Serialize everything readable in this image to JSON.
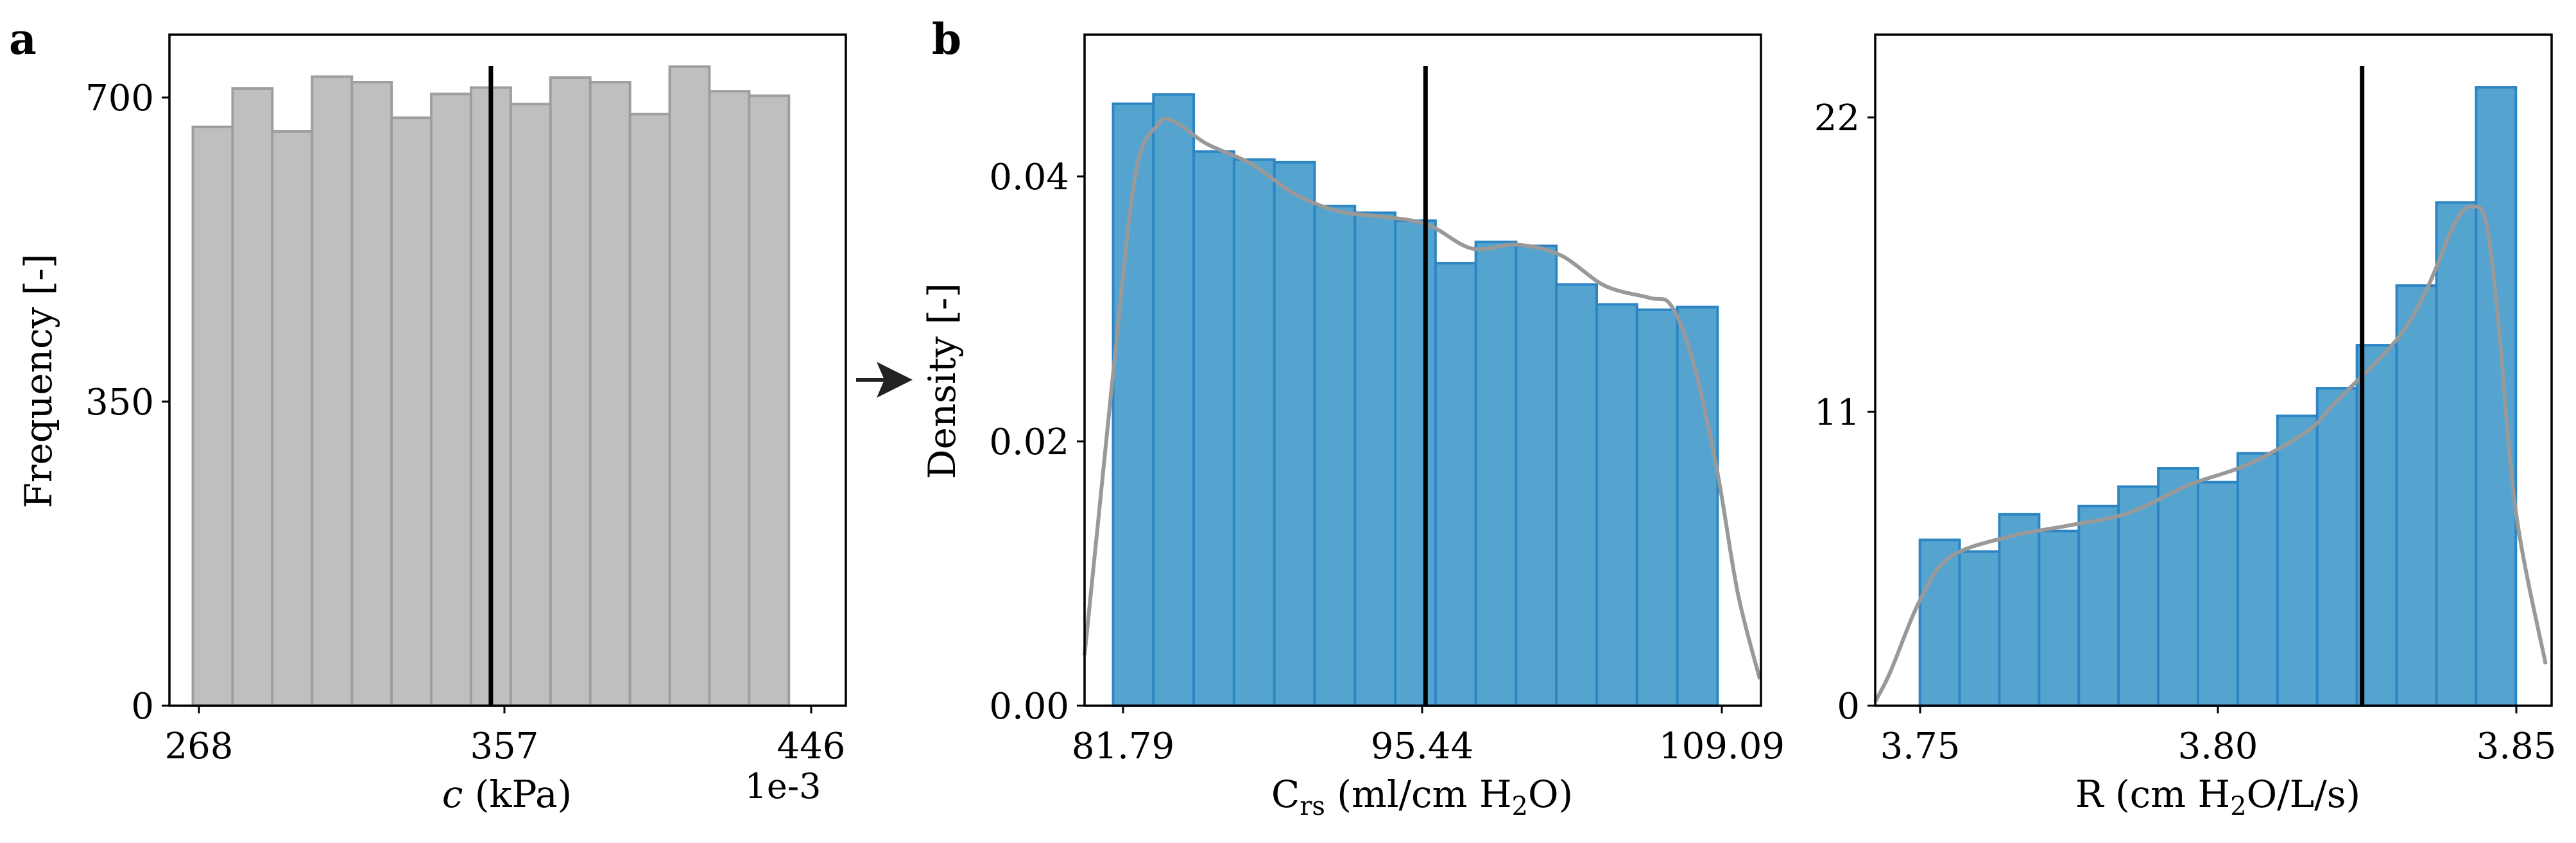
{
  "panel_letters": {
    "a": "a",
    "b": "b"
  },
  "colors": {
    "grey_fill": "#bfbfbf",
    "grey_edge": "#9e9e9e",
    "blue_fill": "#55a4d0",
    "blue_edge": "#2d86c3",
    "kde_line": "#999999",
    "marker_line": "#000000"
  },
  "chart_data": [
    {
      "type": "bar",
      "panel": "a",
      "bins_start": 268,
      "bins_end": 446,
      "values": [
        634,
        676,
        629,
        689,
        683,
        644,
        670,
        677,
        659,
        688,
        683,
        648,
        700,
        673,
        668
      ],
      "marker_x": 357,
      "xticks": [
        "268",
        "357",
        "446"
      ],
      "yticks": [
        "0",
        "350",
        "700"
      ],
      "ylim": [
        0,
        735
      ],
      "xlim": [
        261,
        463
      ],
      "xlabel_italic": "c",
      "xlabel_rest": " (kPa)",
      "ylabel": "Frequency [-]",
      "offset_text": "1e-3",
      "bar_color": "#bfbfbf"
    },
    {
      "type": "bar",
      "panel": "b",
      "bins_start": 81.79,
      "bins_end": 109.09,
      "values": [
        0.0453,
        0.046,
        0.0417,
        0.0411,
        0.0409,
        0.0376,
        0.0371,
        0.0365,
        0.0333,
        0.0349,
        0.0346,
        0.0317,
        0.0302,
        0.0298,
        0.03
      ],
      "kde": [
        [
          80.5,
          0.0038
        ],
        [
          81.0,
          0.012
        ],
        [
          81.79,
          0.025
        ],
        [
          82.8,
          0.04
        ],
        [
          83.8,
          0.0437
        ],
        [
          84.5,
          0.044
        ],
        [
          86.0,
          0.0423
        ],
        [
          88.0,
          0.0408
        ],
        [
          90.0,
          0.0385
        ],
        [
          92.0,
          0.0372
        ],
        [
          94.0,
          0.0368
        ],
        [
          96.0,
          0.0362
        ],
        [
          98.0,
          0.0344
        ],
        [
          100.0,
          0.0347
        ],
        [
          102.0,
          0.0339
        ],
        [
          104.0,
          0.0316
        ],
        [
          106.0,
          0.0307
        ],
        [
          107.0,
          0.0301
        ],
        [
          108.0,
          0.0258
        ],
        [
          109.09,
          0.0175
        ],
        [
          110.0,
          0.0085
        ],
        [
          111.0,
          0.002
        ]
      ],
      "marker_x": 95.9,
      "xticks": [
        "81.79",
        "95.44",
        "109.09"
      ],
      "yticks": [
        "0.00",
        "0.02",
        "0.04"
      ],
      "ylim": [
        0,
        0.0505
      ],
      "xlim": [
        80.5,
        111.05
      ],
      "ylabel": "Density [-]",
      "xlabel_a": "C",
      "xlabel_sub": "rs",
      "xlabel_b": " (ml/cm H",
      "xlabel_sub2": "2",
      "xlabel_c": "O)",
      "bar_color": "#55a4d0"
    },
    {
      "type": "bar",
      "panel": "b-right",
      "bins_start": 3.75,
      "bins_end": 3.85,
      "values": [
        5.98,
        5.56,
        6.9,
        6.3,
        7.2,
        7.9,
        8.56,
        8.06,
        9.1,
        10.45,
        11.45,
        13.0,
        15.15,
        18.15,
        22.3
      ],
      "kde": [
        [
          3.7425,
          0.15
        ],
        [
          3.745,
          1.2
        ],
        [
          3.75,
          3.8
        ],
        [
          3.755,
          5.35
        ],
        [
          3.765,
          6.1
        ],
        [
          3.775,
          6.5
        ],
        [
          3.785,
          6.95
        ],
        [
          3.795,
          7.95
        ],
        [
          3.805,
          8.7
        ],
        [
          3.815,
          9.9
        ],
        [
          3.82,
          11.0
        ],
        [
          3.83,
          13.2
        ],
        [
          3.835,
          15.0
        ],
        [
          3.84,
          17.5
        ],
        [
          3.843,
          18.0
        ],
        [
          3.845,
          17.4
        ],
        [
          3.847,
          14.0
        ],
        [
          3.85,
          7.0
        ],
        [
          3.855,
          1.5
        ]
      ],
      "marker_x": 3.8242,
      "xticks": [
        "3.75",
        "3.80",
        "3.85"
      ],
      "yticks": [
        "0",
        "11",
        "22"
      ],
      "ylim": [
        0,
        24.2
      ],
      "xlim": [
        3.7425,
        3.856
      ],
      "xlabel_a": "R (cm H",
      "xlabel_sub": "2",
      "xlabel_b": "O/L/s)",
      "bar_color": "#55a4d0"
    }
  ]
}
